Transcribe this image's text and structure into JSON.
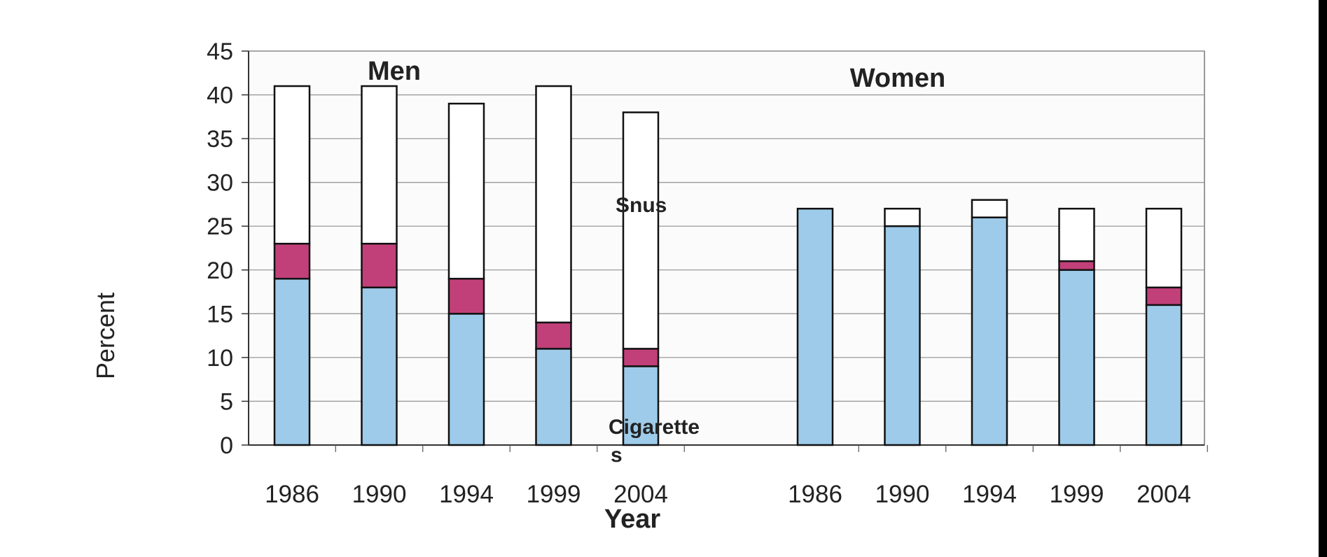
{
  "chart_data": {
    "type": "bar",
    "stacked": true,
    "title": "",
    "xlabel": "Year",
    "ylabel": "Percent",
    "ylim": [
      0,
      45
    ],
    "yticks": [
      "0",
      "5",
      "10",
      "15",
      "20",
      "25",
      "30",
      "35",
      "40",
      "45"
    ],
    "grid": true,
    "groups": [
      {
        "name": "Men",
        "categories": [
          "1986",
          "1990",
          "1994",
          "1999",
          "2004"
        ],
        "series": [
          {
            "name": "Cigarettes",
            "values": [
              19,
              18,
              15,
              11,
              9
            ]
          },
          {
            "name": "",
            "values": [
              4,
              5,
              4,
              3,
              2
            ]
          },
          {
            "name": "Snus",
            "values": [
              18,
              18,
              20,
              27,
              27
            ]
          }
        ]
      },
      {
        "name": "Women",
        "categories": [
          "1986",
          "1990",
          "1994",
          "1999",
          "2004"
        ],
        "series": [
          {
            "name": "Cigarettes",
            "values": [
              27,
              25,
              26,
              20,
              16
            ]
          },
          {
            "name": "",
            "values": [
              0,
              0,
              0,
              1,
              2
            ]
          },
          {
            "name": "Snus",
            "values": [
              0,
              2,
              2,
              6,
              9
            ]
          }
        ]
      }
    ],
    "annotations": {
      "snus": "Snus",
      "cigarettes_line1": "Cigarette",
      "cigarettes_line2": "s"
    },
    "colors": {
      "cigarettes": "#9ecbe9",
      "middle": "#c2407a",
      "snus": "#ffffff",
      "grid": "#9a9a9a",
      "outline": "#111111"
    }
  }
}
